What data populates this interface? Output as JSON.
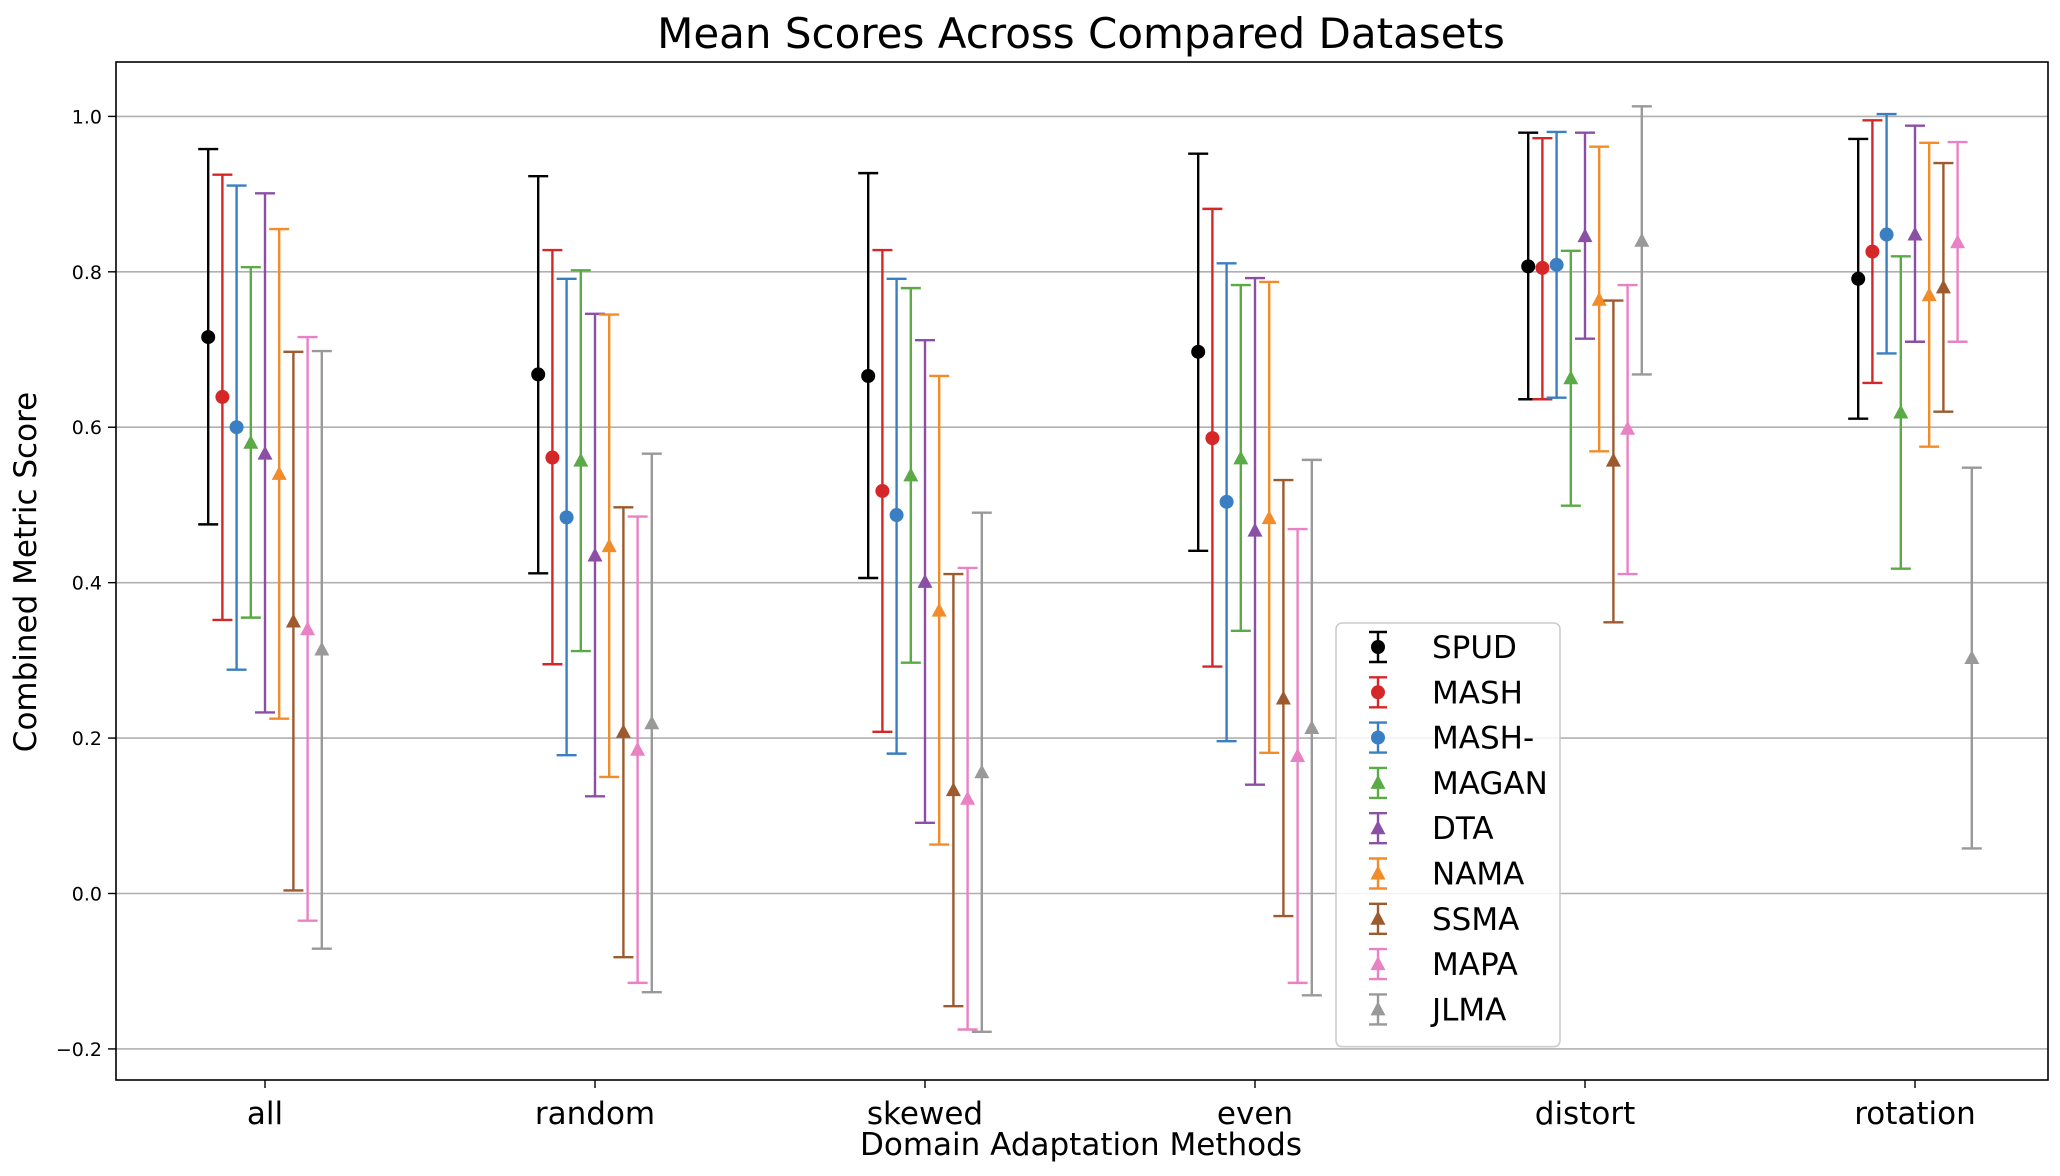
{
  "chart_data": {
    "type": "errorbar",
    "title": "Mean Scores Across Compared Datasets",
    "xlabel": "Domain Adaptation Methods",
    "ylabel": "Combined Metric Score",
    "ylim": [
      -0.24,
      1.07
    ],
    "yticks": [
      "−0.2",
      "0.0",
      "0.2",
      "0.4",
      "0.6",
      "0.8",
      "1.0"
    ],
    "ytick_values": [
      -0.2,
      0.0,
      0.2,
      0.4,
      0.6,
      0.8,
      1.0
    ],
    "grid": "horizontal",
    "legend_position": "lower-right",
    "categories": [
      "all",
      "random",
      "skewed",
      "even",
      "distort",
      "rotation"
    ],
    "series": [
      {
        "name": "SPUD",
        "color": "#000000",
        "marker": "circle",
        "mean": [
          0.716,
          0.668,
          0.666,
          0.697,
          0.807,
          0.791
        ],
        "low": [
          0.475,
          0.412,
          0.406,
          0.441,
          0.636,
          0.611
        ],
        "high": [
          0.958,
          0.923,
          0.927,
          0.952,
          0.979,
          0.971
        ]
      },
      {
        "name": "MASH",
        "color": "#d62728",
        "marker": "circle",
        "mean": [
          0.639,
          0.561,
          0.518,
          0.586,
          0.805,
          0.826
        ],
        "low": [
          0.352,
          0.295,
          0.208,
          0.292,
          0.636,
          0.657
        ],
        "high": [
          0.925,
          0.828,
          0.828,
          0.881,
          0.972,
          0.995
        ]
      },
      {
        "name": "MASH-",
        "color": "#3a7fc1",
        "marker": "circle",
        "mean": [
          0.6,
          0.484,
          0.487,
          0.504,
          0.809,
          0.848
        ],
        "low": [
          0.288,
          0.178,
          0.18,
          0.196,
          0.638,
          0.695
        ],
        "high": [
          0.911,
          0.791,
          0.791,
          0.811,
          0.98,
          1.003
        ]
      },
      {
        "name": "MAGAN",
        "color": "#5aaa46",
        "marker": "triangle",
        "mean": [
          0.58,
          0.557,
          0.538,
          0.56,
          0.663,
          0.619
        ],
        "low": [
          0.355,
          0.312,
          0.297,
          0.338,
          0.499,
          0.418
        ],
        "high": [
          0.806,
          0.802,
          0.779,
          0.783,
          0.827,
          0.82
        ]
      },
      {
        "name": "DTA",
        "color": "#8b4fa6",
        "marker": "triangle",
        "mean": [
          0.566,
          0.435,
          0.401,
          0.467,
          0.846,
          0.848
        ],
        "low": [
          0.233,
          0.125,
          0.091,
          0.14,
          0.714,
          0.71
        ],
        "high": [
          0.901,
          0.746,
          0.712,
          0.792,
          0.979,
          0.988
        ]
      },
      {
        "name": "NAMA",
        "color": "#f28c28",
        "marker": "triangle",
        "mean": [
          0.54,
          0.447,
          0.364,
          0.483,
          0.764,
          0.77
        ],
        "low": [
          0.225,
          0.15,
          0.063,
          0.181,
          0.569,
          0.575
        ],
        "high": [
          0.855,
          0.745,
          0.666,
          0.787,
          0.961,
          0.966
        ]
      },
      {
        "name": "SSMA",
        "color": "#9c5a2e",
        "marker": "triangle",
        "mean": [
          0.35,
          0.208,
          0.133,
          0.251,
          0.557,
          0.78
        ],
        "low": [
          0.004,
          -0.082,
          -0.145,
          -0.029,
          0.349,
          0.62
        ],
        "high": [
          0.697,
          0.497,
          0.411,
          0.532,
          0.763,
          0.94
        ]
      },
      {
        "name": "MAPA",
        "color": "#e982c4",
        "marker": "triangle",
        "mean": [
          0.34,
          0.185,
          0.122,
          0.177,
          0.598,
          0.838
        ],
        "low": [
          -0.035,
          -0.115,
          -0.175,
          -0.115,
          0.411,
          0.71
        ],
        "high": [
          0.716,
          0.485,
          0.419,
          0.469,
          0.783,
          0.967
        ]
      },
      {
        "name": "JLMA",
        "color": "#999999",
        "marker": "triangle",
        "mean": [
          0.314,
          0.219,
          0.156,
          0.213,
          0.84,
          0.303
        ],
        "low": [
          -0.071,
          -0.127,
          -0.178,
          -0.131,
          0.668,
          0.058
        ],
        "high": [
          0.698,
          0.566,
          0.49,
          0.558,
          1.013,
          0.548
        ]
      }
    ]
  }
}
